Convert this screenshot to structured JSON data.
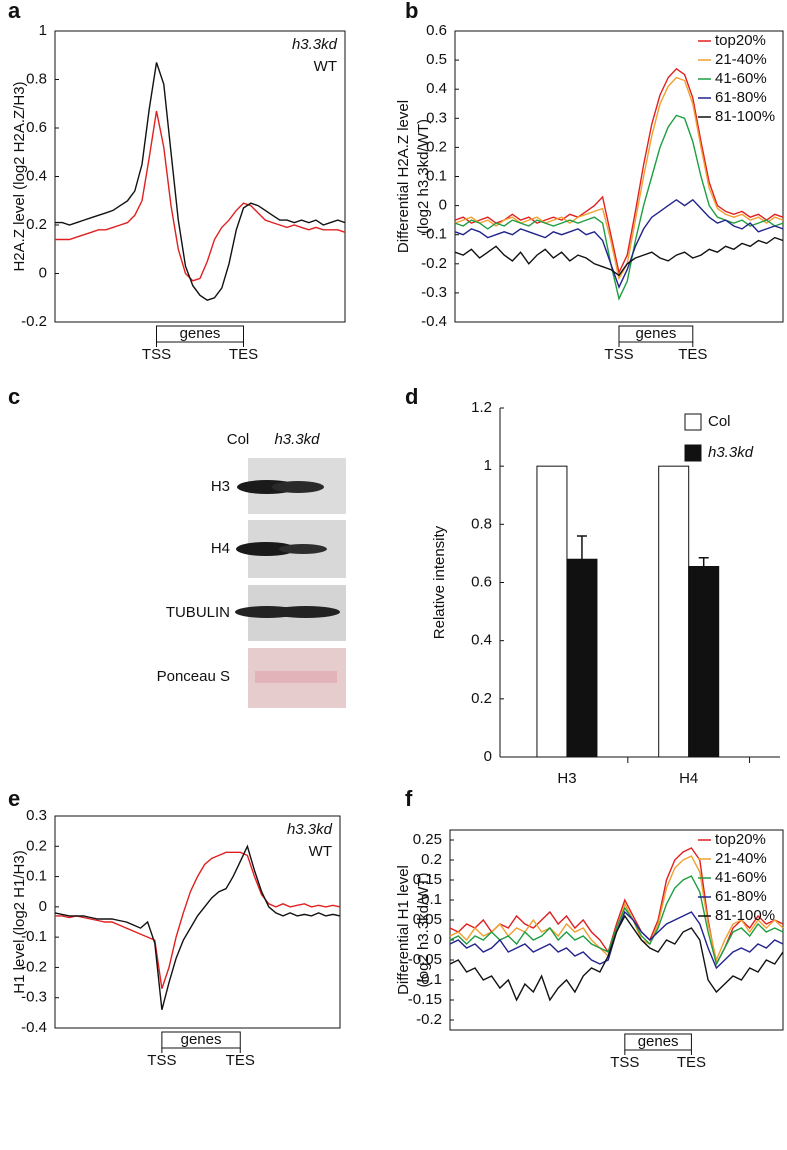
{
  "chart_data": [
    {
      "type": "line",
      "panel": "a",
      "ylabel": [
        "H2A.Z level (log2 H2A.Z/H3)"
      ],
      "ylim": [
        -0.2,
        1
      ],
      "yticks": [
        -0.2,
        0,
        0.2,
        0.4,
        0.6,
        0.8,
        1
      ],
      "xlim": [
        0,
        40
      ],
      "xticks": [
        {
          "value": 14,
          "label": "TSS"
        },
        {
          "value": 26,
          "label": "TES"
        }
      ],
      "region_label": "genes",
      "legend": "upper right",
      "legend_lines": false,
      "series": [
        {
          "name": "h3.3kd",
          "color": "#e02020",
          "style": "italic",
          "values": [
            0.14,
            0.14,
            0.14,
            0.15,
            0.16,
            0.17,
            0.18,
            0.18,
            0.19,
            0.2,
            0.21,
            0.24,
            0.3,
            0.48,
            0.67,
            0.52,
            0.28,
            0.1,
            0.0,
            -0.03,
            -0.02,
            0.05,
            0.14,
            0.19,
            0.22,
            0.26,
            0.29,
            0.28,
            0.25,
            0.22,
            0.21,
            0.2,
            0.19,
            0.2,
            0.19,
            0.18,
            0.19,
            0.18,
            0.18,
            0.18,
            0.17
          ]
        },
        {
          "name": "WT",
          "color": "#111111",
          "style": "normal",
          "values": [
            0.21,
            0.21,
            0.2,
            0.21,
            0.22,
            0.23,
            0.24,
            0.25,
            0.26,
            0.28,
            0.3,
            0.34,
            0.45,
            0.68,
            0.87,
            0.78,
            0.5,
            0.22,
            0.03,
            -0.05,
            -0.09,
            -0.11,
            -0.1,
            -0.06,
            0.04,
            0.18,
            0.27,
            0.29,
            0.28,
            0.26,
            0.24,
            0.22,
            0.22,
            0.21,
            0.22,
            0.21,
            0.22,
            0.2,
            0.21,
            0.22,
            0.21
          ]
        }
      ]
    },
    {
      "type": "line",
      "panel": "b",
      "ylabel": [
        "Differential H2A.Z level",
        "(log2 h3.3kd/WT)"
      ],
      "ylim": [
        -0.4,
        0.6
      ],
      "yticks": [
        -0.4,
        -0.3,
        -0.2,
        -0.1,
        0,
        0.1,
        0.2,
        0.3,
        0.4,
        0.5,
        0.6
      ],
      "xlim": [
        0,
        40
      ],
      "xticks": [
        {
          "value": 20,
          "label": "TSS"
        },
        {
          "value": 29,
          "label": "TES"
        }
      ],
      "region_label": "genes",
      "legend": "upper right",
      "legend_lines": true,
      "series": [
        {
          "name": "top20%",
          "color": "#e02020",
          "values": [
            -0.05,
            -0.04,
            -0.06,
            -0.05,
            -0.04,
            -0.06,
            -0.05,
            -0.03,
            -0.05,
            -0.04,
            -0.06,
            -0.05,
            -0.04,
            -0.05,
            -0.03,
            -0.04,
            -0.02,
            0.0,
            0.03,
            -0.1,
            -0.23,
            -0.17,
            -0.02,
            0.14,
            0.28,
            0.38,
            0.44,
            0.47,
            0.45,
            0.37,
            0.22,
            0.08,
            0.0,
            -0.02,
            -0.03,
            -0.02,
            -0.04,
            -0.03,
            -0.05,
            -0.03,
            -0.04
          ]
        },
        {
          "name": "21-40%",
          "color": "#f0a030",
          "values": [
            -0.06,
            -0.05,
            -0.04,
            -0.06,
            -0.05,
            -0.07,
            -0.05,
            -0.04,
            -0.06,
            -0.05,
            -0.04,
            -0.06,
            -0.05,
            -0.04,
            -0.06,
            -0.04,
            -0.03,
            -0.02,
            -0.01,
            -0.12,
            -0.25,
            -0.2,
            -0.05,
            0.1,
            0.24,
            0.35,
            0.41,
            0.44,
            0.43,
            0.35,
            0.2,
            0.06,
            -0.01,
            -0.03,
            -0.04,
            -0.03,
            -0.05,
            -0.04,
            -0.06,
            -0.04,
            -0.05
          ]
        },
        {
          "name": "41-60%",
          "color": "#1e9e40",
          "values": [
            -0.06,
            -0.07,
            -0.05,
            -0.06,
            -0.08,
            -0.06,
            -0.07,
            -0.05,
            -0.06,
            -0.07,
            -0.05,
            -0.06,
            -0.07,
            -0.06,
            -0.05,
            -0.06,
            -0.05,
            -0.04,
            -0.06,
            -0.2,
            -0.32,
            -0.26,
            -0.12,
            0.0,
            0.1,
            0.2,
            0.27,
            0.31,
            0.3,
            0.22,
            0.1,
            0.0,
            -0.04,
            -0.05,
            -0.06,
            -0.05,
            -0.07,
            -0.06,
            -0.05,
            -0.07,
            -0.06
          ]
        },
        {
          "name": "61-80%",
          "color": "#23238e",
          "values": [
            -0.09,
            -0.1,
            -0.08,
            -0.09,
            -0.11,
            -0.1,
            -0.09,
            -0.1,
            -0.08,
            -0.09,
            -0.1,
            -0.11,
            -0.09,
            -0.1,
            -0.09,
            -0.08,
            -0.1,
            -0.09,
            -0.12,
            -0.2,
            -0.28,
            -0.22,
            -0.14,
            -0.08,
            -0.04,
            -0.02,
            0.0,
            0.02,
            0.0,
            0.02,
            -0.01,
            -0.04,
            -0.06,
            -0.05,
            -0.07,
            -0.08,
            -0.06,
            -0.09,
            -0.08,
            -0.07,
            -0.08
          ]
        },
        {
          "name": "81-100%",
          "color": "#111111",
          "values": [
            -0.16,
            -0.17,
            -0.15,
            -0.18,
            -0.16,
            -0.14,
            -0.17,
            -0.19,
            -0.16,
            -0.2,
            -0.17,
            -0.15,
            -0.18,
            -0.16,
            -0.19,
            -0.17,
            -0.18,
            -0.2,
            -0.21,
            -0.22,
            -0.24,
            -0.2,
            -0.18,
            -0.17,
            -0.16,
            -0.18,
            -0.19,
            -0.17,
            -0.16,
            -0.18,
            -0.17,
            -0.15,
            -0.16,
            -0.14,
            -0.15,
            -0.13,
            -0.14,
            -0.12,
            -0.13,
            -0.11,
            -0.12
          ]
        }
      ]
    },
    {
      "type": "bar",
      "panel": "d",
      "ylabel": [
        "Relative intensity"
      ],
      "ylim": [
        0,
        1.2
      ],
      "yticks": [
        0,
        0.2,
        0.4,
        0.6,
        0.8,
        1,
        1.2
      ],
      "categories": [
        "H3",
        "H4"
      ],
      "legend": "upper right",
      "series": [
        {
          "name": "Col",
          "color": "#ffffff",
          "style": "normal",
          "values": [
            1,
            1
          ]
        },
        {
          "name": "h3.3kd",
          "color": "#111111",
          "style": "italic",
          "values": [
            0.68,
            0.655
          ],
          "errors": [
            0.08,
            0.03
          ]
        }
      ]
    },
    {
      "type": "line",
      "panel": "e",
      "ylabel": [
        "H1 level (log2 H1/H3)"
      ],
      "ylim": [
        -0.4,
        0.3
      ],
      "yticks": [
        -0.4,
        -0.3,
        -0.2,
        -0.1,
        0,
        0.1,
        0.2,
        0.3
      ],
      "xlim": [
        0,
        40
      ],
      "xticks": [
        {
          "value": 15,
          "label": "TSS"
        },
        {
          "value": 26,
          "label": "TES"
        }
      ],
      "region_label": "genes",
      "legend": "upper right",
      "legend_lines": false,
      "series": [
        {
          "name": "h3.3kd",
          "color": "#e02020",
          "style": "italic",
          "values": [
            -0.03,
            -0.03,
            -0.035,
            -0.03,
            -0.035,
            -0.04,
            -0.045,
            -0.05,
            -0.05,
            -0.06,
            -0.07,
            -0.08,
            -0.09,
            -0.1,
            -0.11,
            -0.27,
            -0.2,
            -0.1,
            -0.02,
            0.05,
            0.1,
            0.14,
            0.16,
            0.17,
            0.18,
            0.18,
            0.18,
            0.17,
            0.1,
            0.04,
            0.01,
            0.0,
            0.01,
            0.0,
            0.005,
            0.01,
            0.0,
            0.005,
            0.0,
            0.005,
            0.0
          ]
        },
        {
          "name": "WT",
          "color": "#111111",
          "style": "normal",
          "values": [
            -0.02,
            -0.025,
            -0.03,
            -0.03,
            -0.03,
            -0.035,
            -0.04,
            -0.04,
            -0.04,
            -0.045,
            -0.05,
            -0.06,
            -0.07,
            -0.05,
            -0.12,
            -0.34,
            -0.25,
            -0.17,
            -0.11,
            -0.07,
            -0.03,
            0.0,
            0.03,
            0.05,
            0.06,
            0.1,
            0.15,
            0.2,
            0.12,
            0.05,
            0.0,
            -0.02,
            -0.03,
            -0.02,
            -0.03,
            -0.025,
            -0.03,
            -0.02,
            -0.03,
            -0.025,
            -0.03
          ]
        }
      ]
    },
    {
      "type": "line",
      "panel": "f",
      "ylabel": [
        "Differential H1 level",
        "(log2 h3.3kd/WT)"
      ],
      "ylim": [
        -0.225,
        0.275
      ],
      "yticks": [
        -0.2,
        -0.15,
        -0.1,
        -0.05,
        0,
        0.05,
        0.1,
        0.15,
        0.2,
        0.25
      ],
      "xlim": [
        0,
        40
      ],
      "xticks": [
        {
          "value": 21,
          "label": "TSS"
        },
        {
          "value": 29,
          "label": "TES"
        }
      ],
      "region_label": "genes",
      "legend": "upper right",
      "legend_lines": true,
      "series": [
        {
          "name": "top20%",
          "color": "#e02020",
          "values": [
            0.03,
            0.02,
            0.04,
            0.03,
            0.05,
            0.02,
            0.04,
            0.03,
            0.06,
            0.04,
            0.03,
            0.05,
            0.07,
            0.04,
            0.06,
            0.03,
            0.05,
            0.02,
            0.0,
            -0.03,
            0.04,
            0.1,
            0.06,
            0.02,
            0.0,
            0.05,
            0.15,
            0.2,
            0.22,
            0.23,
            0.2,
            0.05,
            -0.06,
            -0.02,
            0.03,
            0.05,
            0.03,
            0.06,
            0.04,
            0.05,
            0.04
          ]
        },
        {
          "name": "21-40%",
          "color": "#f0a030",
          "values": [
            0.01,
            0.02,
            0.0,
            0.03,
            0.01,
            0.02,
            0.04,
            0.01,
            0.03,
            0.02,
            0.05,
            0.02,
            0.03,
            0.01,
            0.04,
            0.02,
            0.03,
            0.0,
            -0.02,
            -0.04,
            0.03,
            0.09,
            0.05,
            0.0,
            -0.01,
            0.04,
            0.13,
            0.18,
            0.2,
            0.21,
            0.17,
            0.04,
            -0.05,
            0.0,
            0.04,
            0.05,
            0.02,
            0.05,
            0.03,
            0.05,
            0.03
          ]
        },
        {
          "name": "41-60%",
          "color": "#1e9e40",
          "values": [
            0.0,
            0.01,
            -0.01,
            0.01,
            0.0,
            0.02,
            0.0,
            0.01,
            -0.01,
            0.02,
            0.0,
            0.01,
            0.03,
            0.0,
            0.02,
            0.0,
            0.01,
            -0.01,
            -0.02,
            -0.03,
            0.03,
            0.08,
            0.05,
            0.01,
            -0.01,
            0.03,
            0.09,
            0.13,
            0.15,
            0.16,
            0.12,
            0.02,
            -0.06,
            -0.02,
            0.02,
            0.03,
            0.01,
            0.04,
            0.02,
            0.03,
            0.02
          ]
        },
        {
          "name": "61-80%",
          "color": "#23238e",
          "values": [
            -0.01,
            0.0,
            -0.02,
            -0.01,
            -0.03,
            -0.02,
            0.0,
            -0.03,
            -0.02,
            -0.01,
            -0.03,
            -0.02,
            -0.01,
            -0.03,
            -0.02,
            -0.04,
            -0.03,
            -0.05,
            -0.06,
            -0.05,
            0.02,
            0.07,
            0.05,
            0.02,
            0.0,
            0.02,
            0.04,
            0.05,
            0.06,
            0.07,
            0.04,
            -0.02,
            -0.07,
            -0.05,
            -0.03,
            -0.02,
            -0.03,
            -0.01,
            -0.02,
            0.0,
            -0.01
          ]
        },
        {
          "name": "81-100%",
          "color": "#111111",
          "values": [
            -0.06,
            -0.05,
            -0.08,
            -0.07,
            -0.1,
            -0.09,
            -0.12,
            -0.1,
            -0.15,
            -0.11,
            -0.13,
            -0.09,
            -0.15,
            -0.12,
            -0.1,
            -0.13,
            -0.09,
            -0.07,
            -0.08,
            -0.04,
            0.02,
            0.06,
            0.03,
            0.0,
            -0.02,
            -0.03,
            0.0,
            -0.01,
            0.02,
            0.03,
            0.0,
            -0.1,
            -0.13,
            -0.11,
            -0.09,
            -0.1,
            -0.07,
            -0.08,
            -0.05,
            -0.06,
            -0.03
          ]
        }
      ]
    }
  ],
  "blot": {
    "panel": "c",
    "lanes": [
      "Col",
      "h3.3kd"
    ],
    "rows": [
      "H3",
      "H4",
      "TUBULIN",
      "Ponceau S"
    ]
  }
}
